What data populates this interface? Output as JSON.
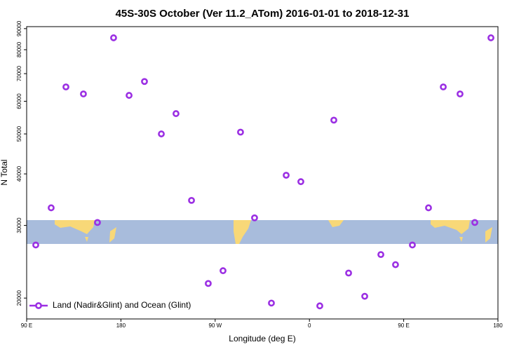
{
  "chart_data": {
    "type": "scatter",
    "title": "45S-30S October (Ver 11.2_ATom)   2016-01-01 to 2018-12-31",
    "x_label": "Longitude (deg E)",
    "y_label": "N Total",
    "x": [
      98.7,
      113.4,
      127.5,
      144.2,
      157.6,
      173,
      187.8,
      202.5,
      218.6,
      232.6,
      247.4,
      263.4,
      277.5,
      294.2,
      307.6,
      323.7,
      337.8,
      351.8,
      369.9,
      383.3,
      397.4,
      412.8,
      428.2,
      442.2,
      458.3,
      473.7,
      487.8,
      503.8,
      517.9,
      533.3
    ],
    "series": [
      {
        "name": "Land (Nadir&Glint) and Ocean (Glint)",
        "color": "#9b2fe3",
        "values": [
          26900,
          33100,
          65000,
          62500,
          30500,
          85500,
          62000,
          67000,
          50000,
          56000,
          34500,
          21700,
          23300,
          50500,
          31300,
          19450,
          39700,
          38300,
          19150,
          54000,
          23000,
          20200,
          25500,
          24100,
          26900,
          33100,
          65000,
          62500,
          30500,
          85500
        ]
      }
    ],
    "xlim": [
      90,
      540
    ],
    "xticks": [
      {
        "value": 90,
        "label": "90 E"
      },
      180,
      {
        "value": 270,
        "label": "90 W"
      },
      {
        "value": 360,
        "label": "0"
      },
      {
        "value": 450,
        "label": "90 E"
      },
      {
        "value": 540,
        "label": "180"
      }
    ],
    "ylim": [
      17800,
      91000
    ],
    "y_scale": "log",
    "yticks": [
      20000,
      30000,
      40000,
      50000,
      60000,
      70000,
      80000,
      90000
    ],
    "legend": "bottom-left"
  }
}
